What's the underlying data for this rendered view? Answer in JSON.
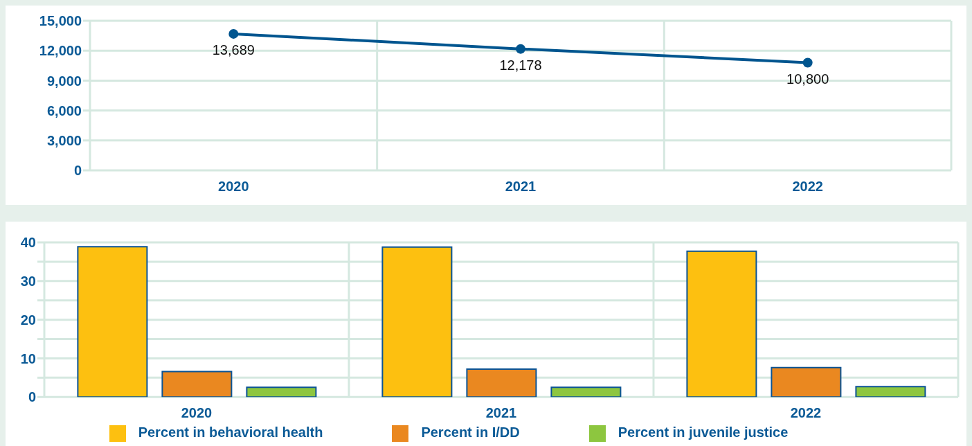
{
  "chart_data": [
    {
      "type": "line",
      "categories": [
        "2020",
        "2021",
        "2022"
      ],
      "series": [
        {
          "color": "#00558f",
          "values": [
            13689,
            12178,
            10800
          ],
          "value_labels": [
            "13,689",
            "12,178",
            "10,800"
          ]
        }
      ],
      "ylim": [
        0,
        15000
      ],
      "yticks": [
        {
          "value": 0,
          "label": "0"
        },
        {
          "value": 3000,
          "label": "3,000"
        },
        {
          "value": 6000,
          "label": "6,000"
        },
        {
          "value": 9000,
          "label": "9,000"
        },
        {
          "value": 12000,
          "label": "12,000"
        },
        {
          "value": 15000,
          "label": "15,000"
        }
      ],
      "grid": true,
      "marker": "circle"
    },
    {
      "type": "bar",
      "categories": [
        "2020",
        "2021",
        "2022"
      ],
      "series": [
        {
          "name": "Percent in behavioral health",
          "color": "#fdc010",
          "values": [
            38.9,
            38.8,
            37.7
          ]
        },
        {
          "name": "Percent in I/DD",
          "color": "#ea8820",
          "values": [
            6.6,
            7.2,
            7.6
          ]
        },
        {
          "name": "Percent in juvenile justice",
          "color": "#8dc63f",
          "values": [
            2.5,
            2.5,
            2.7
          ]
        }
      ],
      "ylim": [
        0,
        40
      ],
      "yticks": [
        0,
        {
          "value": 5,
          "label": null
        },
        10,
        {
          "value": 15,
          "label": null
        },
        20,
        {
          "value": 25,
          "label": null
        },
        30,
        {
          "value": 35,
          "label": null
        },
        40
      ],
      "grid": true,
      "legend": "bottom"
    }
  ]
}
